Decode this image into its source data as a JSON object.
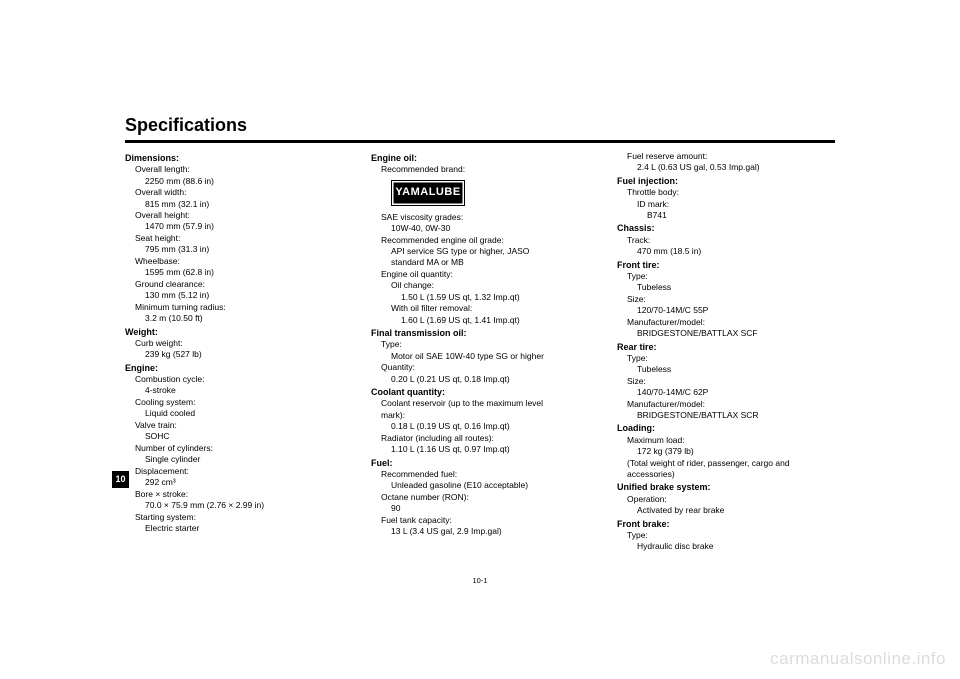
{
  "page": {
    "title": "Specifications",
    "side_tab": "10",
    "page_number": "10-1",
    "watermark": "carmanualsonline.info",
    "logo_text": "YAMALUBE",
    "colors": {
      "text": "#000000",
      "bg": "#ffffff",
      "watermark": "#dcdcdc"
    }
  },
  "col1": {
    "dimensions_h": "Dimensions:",
    "overall_length_l": "Overall length:",
    "overall_length_v": "2250 mm (88.6 in)",
    "overall_width_l": "Overall width:",
    "overall_width_v": "815 mm (32.1 in)",
    "overall_height_l": "Overall height:",
    "overall_height_v": "1470 mm (57.9 in)",
    "seat_height_l": "Seat height:",
    "seat_height_v": "795 mm (31.3 in)",
    "wheelbase_l": "Wheelbase:",
    "wheelbase_v": "1595 mm (62.8 in)",
    "ground_clearance_l": "Ground clearance:",
    "ground_clearance_v": "130 mm (5.12 in)",
    "min_turn_l": "Minimum turning radius:",
    "min_turn_v": "3.2 m (10.50 ft)",
    "weight_h": "Weight:",
    "curb_l": "Curb weight:",
    "curb_v": "239 kg (527 lb)",
    "engine_h": "Engine:",
    "comb_l": "Combustion cycle:",
    "comb_v": "4-stroke",
    "cool_l": "Cooling system:",
    "cool_v": "Liquid cooled",
    "valve_l": "Valve train:",
    "valve_v": "SOHC",
    "cyl_l": "Number of cylinders:",
    "cyl_v": "Single cylinder",
    "disp_l": "Displacement:",
    "disp_v": "292 cm³",
    "bore_l": "Bore × stroke:",
    "bore_v": "70.0 × 75.9 mm (2.76 × 2.99 in)",
    "start_l": "Starting system:",
    "start_v": "Electric starter"
  },
  "col2": {
    "engine_oil_h": "Engine oil:",
    "rec_brand_l": "Recommended brand:",
    "sae_l": "SAE viscosity grades:",
    "sae_v": "10W-40, 0W-30",
    "rec_grade_l": "Recommended engine oil grade:",
    "rec_grade_v1": "API service SG type or higher, JASO",
    "rec_grade_v2": "standard MA or MB",
    "oil_qty_l": "Engine oil quantity:",
    "oil_change_l": "Oil change:",
    "oil_change_v": "1.50 L (1.59 US qt, 1.32 Imp.qt)",
    "oil_filter_l": "With oil filter removal:",
    "oil_filter_v": "1.60 L (1.69 US qt, 1.41 Imp.qt)",
    "final_h": "Final transmission oil:",
    "type_l": "Type:",
    "type_v": "Motor oil SAE 10W-40 type SG or higher",
    "qty_l": "Quantity:",
    "qty_v": "0.20 L (0.21 US qt, 0.18 Imp.qt)",
    "coolant_h": "Coolant quantity:",
    "coolant_res_l1": "Coolant reservoir (up to the maximum level",
    "coolant_res_l2": "mark):",
    "coolant_res_v": "0.18 L (0.19 US qt, 0.16 Imp.qt)",
    "radiator_l": "Radiator (including all routes):",
    "radiator_v": "1.10 L (1.16 US qt, 0.97 Imp.qt)",
    "fuel_h": "Fuel:",
    "rec_fuel_l": "Recommended fuel:",
    "rec_fuel_v": "Unleaded gasoline (E10 acceptable)",
    "octane_l": "Octane number (RON):",
    "octane_v": "90",
    "tank_l": "Fuel tank capacity:",
    "tank_v": "13 L (3.4 US gal, 2.9 Imp.gal)"
  },
  "col3": {
    "reserve_l": "Fuel reserve amount:",
    "reserve_v": "2.4 L (0.63 US gal, 0.53 Imp.gal)",
    "fuel_inj_h": "Fuel injection:",
    "throttle_l": "Throttle body:",
    "id_l": "ID mark:",
    "id_v": "B741",
    "chassis_h": "Chassis:",
    "track_l": "Track:",
    "track_v": "470 mm (18.5 in)",
    "front_tire_h": "Front tire:",
    "ft_type_l": "Type:",
    "ft_type_v": "Tubeless",
    "ft_size_l": "Size:",
    "ft_size_v": "120/70-14M/C 55P",
    "ft_mfr_l": "Manufacturer/model:",
    "ft_mfr_v": "BRIDGESTONE/BATTLAX SCF",
    "rear_tire_h": "Rear tire:",
    "rt_type_l": "Type:",
    "rt_type_v": "Tubeless",
    "rt_size_l": "Size:",
    "rt_size_v": "140/70-14M/C 62P",
    "rt_mfr_l": "Manufacturer/model:",
    "rt_mfr_v": "BRIDGESTONE/BATTLAX SCR",
    "loading_h": "Loading:",
    "max_load_l": "Maximum load:",
    "max_load_v": "172 kg (379 lb)",
    "load_note1": "(Total weight of rider, passenger, cargo and",
    "load_note2": "accessories)",
    "ubs_h": "Unified brake system:",
    "op_l": "Operation:",
    "op_v": "Activated by rear brake",
    "fb_h": "Front brake:",
    "fb_type_l": "Type:",
    "fb_type_v": "Hydraulic disc brake"
  }
}
